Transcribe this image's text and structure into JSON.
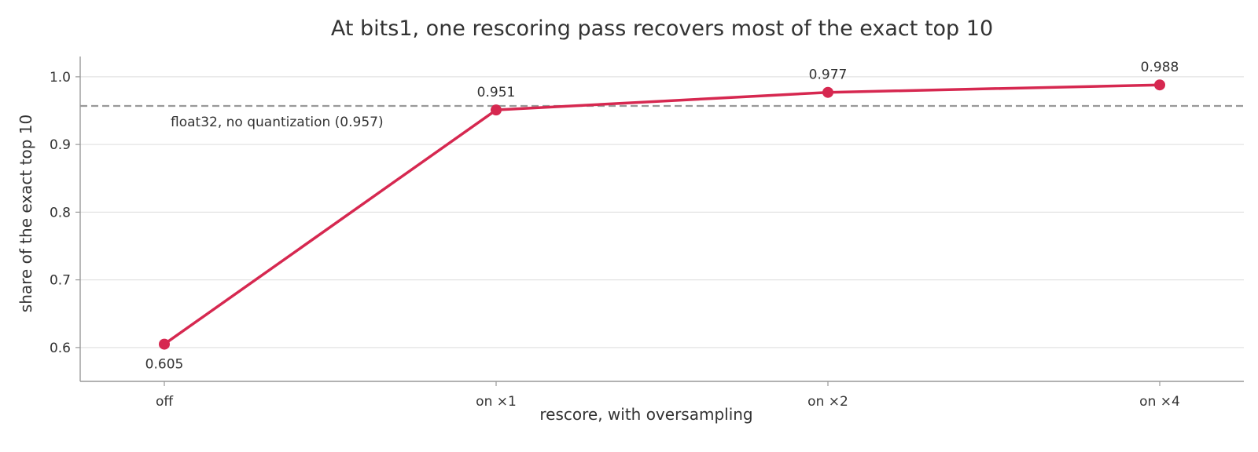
{
  "chart_data": {
    "type": "line",
    "title": "At bits1, one rescoring pass recovers most of the exact top 10",
    "xlabel": "rescore, with oversampling",
    "ylabel": "share of the exact top 10",
    "categories": [
      "off",
      "on ×1",
      "on ×2",
      "on ×4"
    ],
    "series": [
      {
        "values": [
          0.605,
          0.951,
          0.977,
          0.988
        ],
        "labels": [
          "0.605",
          "0.951",
          "0.977",
          "0.988"
        ],
        "color": "#d62850"
      }
    ],
    "reference_line": {
      "value": 0.957,
      "label": "float32, no quantization (0.957)",
      "style": "dashed",
      "color": "#999999"
    },
    "ylim": [
      0.55,
      1.03
    ],
    "yticks": [
      0.6,
      0.7,
      0.8,
      0.9,
      1.0
    ],
    "ytick_labels": [
      "0.6",
      "0.7",
      "0.8",
      "0.9",
      "1.0"
    ],
    "grid": "horizontal",
    "legend": "none"
  }
}
